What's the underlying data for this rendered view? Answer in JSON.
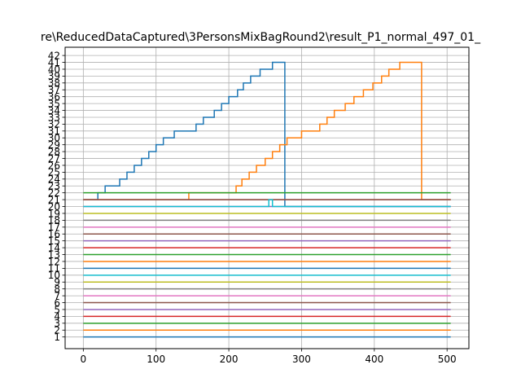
{
  "chart_data": {
    "type": "line",
    "title": "re\\ReducedDataCaptured\\3PersonsMixBagRound2\\result_P1_normal_497_01_",
    "xlabel": "",
    "ylabel": "",
    "xlim": [
      -25,
      530
    ],
    "ylim": [
      -0.7,
      43.2
    ],
    "x_ticks": [
      0,
      100,
      200,
      300,
      400,
      500
    ],
    "y_ticks": [
      1,
      2,
      3,
      4,
      5,
      6,
      7,
      8,
      9,
      10,
      11,
      12,
      13,
      14,
      15,
      16,
      17,
      18,
      19,
      20,
      21,
      22,
      23,
      24,
      25,
      26,
      27,
      28,
      29,
      30,
      31,
      32,
      33,
      34,
      35,
      36,
      37,
      38,
      39,
      40,
      41,
      42
    ],
    "grid": true,
    "series": [
      {
        "color": "#1f77b4",
        "points": [
          [
            0,
            21
          ],
          [
            20,
            21
          ],
          [
            20,
            22
          ],
          [
            30,
            22
          ],
          [
            30,
            23
          ],
          [
            50,
            23
          ],
          [
            50,
            24
          ],
          [
            60,
            24
          ],
          [
            60,
            25
          ],
          [
            70,
            25
          ],
          [
            70,
            26
          ],
          [
            80,
            26
          ],
          [
            80,
            27
          ],
          [
            90,
            27
          ],
          [
            90,
            28
          ],
          [
            100,
            28
          ],
          [
            100,
            29
          ],
          [
            110,
            29
          ],
          [
            110,
            30
          ],
          [
            125,
            30
          ],
          [
            125,
            31
          ],
          [
            155,
            31
          ],
          [
            155,
            32
          ],
          [
            165,
            32
          ],
          [
            165,
            33
          ],
          [
            180,
            33
          ],
          [
            180,
            34
          ],
          [
            190,
            34
          ],
          [
            190,
            35
          ],
          [
            200,
            35
          ],
          [
            200,
            36
          ],
          [
            212,
            36
          ],
          [
            212,
            37
          ],
          [
            220,
            37
          ],
          [
            220,
            38
          ],
          [
            230,
            38
          ],
          [
            230,
            39
          ],
          [
            243,
            39
          ],
          [
            243,
            40
          ],
          [
            260,
            40
          ],
          [
            260,
            41
          ],
          [
            277,
            41
          ],
          [
            277,
            20
          ],
          [
            505,
            20
          ]
        ]
      },
      {
        "color": "#ff7f0e",
        "points": [
          [
            0,
            21
          ],
          [
            145,
            21
          ],
          [
            145,
            22
          ],
          [
            210,
            22
          ],
          [
            210,
            23
          ],
          [
            218,
            23
          ],
          [
            218,
            24
          ],
          [
            228,
            24
          ],
          [
            228,
            25
          ],
          [
            238,
            25
          ],
          [
            238,
            26
          ],
          [
            250,
            26
          ],
          [
            250,
            27
          ],
          [
            260,
            27
          ],
          [
            260,
            28
          ],
          [
            270,
            28
          ],
          [
            270,
            29
          ],
          [
            280,
            29
          ],
          [
            280,
            30
          ],
          [
            300,
            30
          ],
          [
            300,
            31
          ],
          [
            325,
            31
          ],
          [
            325,
            32
          ],
          [
            335,
            32
          ],
          [
            335,
            33
          ],
          [
            345,
            33
          ],
          [
            345,
            34
          ],
          [
            360,
            34
          ],
          [
            360,
            35
          ],
          [
            372,
            35
          ],
          [
            372,
            36
          ],
          [
            385,
            36
          ],
          [
            385,
            37
          ],
          [
            398,
            37
          ],
          [
            398,
            38
          ],
          [
            410,
            38
          ],
          [
            410,
            39
          ],
          [
            420,
            39
          ],
          [
            420,
            40
          ],
          [
            435,
            40
          ],
          [
            435,
            41
          ],
          [
            465,
            41
          ],
          [
            465,
            21
          ],
          [
            505,
            21
          ]
        ]
      },
      {
        "color": "#2ca02c",
        "points": [
          [
            0,
            22
          ],
          [
            505,
            22
          ]
        ]
      },
      {
        "color": "#d62728",
        "points": [
          [
            0,
            21
          ],
          [
            505,
            21
          ]
        ]
      },
      {
        "color": "#9467bd",
        "points": [
          [
            0,
            20
          ],
          [
            505,
            20
          ]
        ]
      },
      {
        "color": "#8c564b",
        "points": [
          [
            0,
            21
          ],
          [
            505,
            21
          ]
        ]
      },
      {
        "color": "#17becf",
        "points": [
          [
            0,
            20
          ],
          [
            255,
            20
          ],
          [
            255,
            21
          ],
          [
            260,
            21
          ],
          [
            260,
            20
          ],
          [
            505,
            20
          ]
        ]
      },
      {
        "color": "#bcbd22",
        "points": [
          [
            0,
            19
          ],
          [
            505,
            19
          ]
        ]
      },
      {
        "color": "#7f7f7f",
        "points": [
          [
            0,
            18
          ],
          [
            505,
            18
          ]
        ]
      },
      {
        "color": "#e377c2",
        "points": [
          [
            0,
            17
          ],
          [
            505,
            17
          ]
        ]
      },
      {
        "color": "#8c564b",
        "points": [
          [
            0,
            16
          ],
          [
            505,
            16
          ]
        ]
      },
      {
        "color": "#d62728",
        "points": [
          [
            0,
            14
          ],
          [
            505,
            14
          ]
        ]
      },
      {
        "color": "#9467bd",
        "points": [
          [
            0,
            15
          ],
          [
            505,
            15
          ]
        ]
      },
      {
        "color": "#2ca02c",
        "points": [
          [
            0,
            13
          ],
          [
            505,
            13
          ]
        ]
      },
      {
        "color": "#ff7f0e",
        "points": [
          [
            0,
            12
          ],
          [
            505,
            12
          ]
        ]
      },
      {
        "color": "#1f77b4",
        "points": [
          [
            0,
            11
          ],
          [
            505,
            11
          ]
        ]
      },
      {
        "color": "#17becf",
        "points": [
          [
            0,
            10
          ],
          [
            505,
            10
          ]
        ]
      },
      {
        "color": "#bcbd22",
        "points": [
          [
            0,
            9
          ],
          [
            505,
            9
          ]
        ]
      },
      {
        "color": "#7f7f7f",
        "points": [
          [
            0,
            8
          ],
          [
            505,
            8
          ]
        ]
      },
      {
        "color": "#e377c2",
        "points": [
          [
            0,
            7
          ],
          [
            505,
            7
          ]
        ]
      },
      {
        "color": "#8c564b",
        "points": [
          [
            0,
            6
          ],
          [
            505,
            6
          ]
        ]
      },
      {
        "color": "#9467bd",
        "points": [
          [
            0,
            5
          ],
          [
            505,
            5
          ]
        ]
      },
      {
        "color": "#d62728",
        "points": [
          [
            0,
            4
          ],
          [
            505,
            4
          ]
        ]
      },
      {
        "color": "#2ca02c",
        "points": [
          [
            0,
            3
          ],
          [
            505,
            3
          ]
        ]
      },
      {
        "color": "#ff7f0e",
        "points": [
          [
            0,
            2
          ],
          [
            505,
            2
          ]
        ]
      },
      {
        "color": "#1f77b4",
        "points": [
          [
            0,
            1
          ],
          [
            505,
            1
          ]
        ]
      }
    ]
  }
}
